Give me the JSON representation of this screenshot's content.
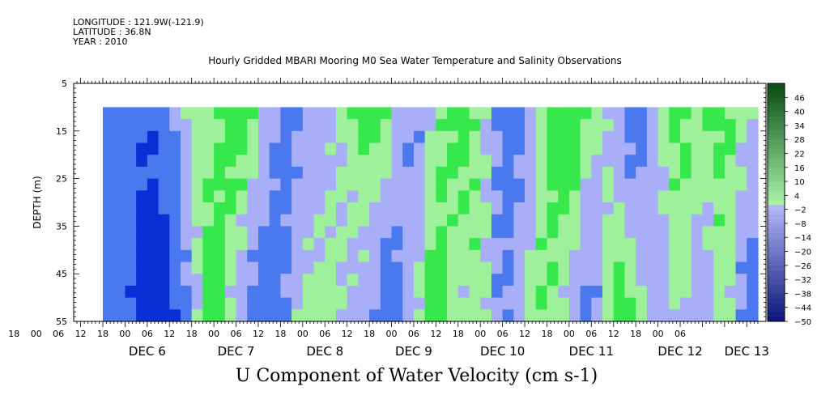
{
  "meta": {
    "longitude": "LONGITUDE : 121.9W(-121.9)",
    "latitude": "LATITUDE : 36.8N",
    "year": "YEAR : 2010"
  },
  "chart_data": {
    "type": "heatmap",
    "title": "Hourly Gridded MBARI Mooring M0 Sea Water Temperature and Salinity Observations",
    "xlabel": "U Component of Water Velocity (cm s-1)",
    "ylabel": "DEPTH (m)",
    "ylim": [
      5,
      55
    ],
    "y_inverted": true,
    "y_ticks": [
      5,
      15,
      25,
      35,
      45,
      55
    ],
    "data_depth_range": [
      10,
      55
    ],
    "x_hours_range": [
      0,
      177
    ],
    "x_hour_ticks": [
      "12",
      "18",
      "00",
      "06",
      "12",
      "18",
      "00",
      "06",
      "12",
      "18",
      "00",
      "06",
      "12",
      "18",
      "00",
      "06",
      "12",
      "18",
      "00",
      "06",
      "12",
      "18",
      "00",
      "06",
      "12",
      "18",
      "00",
      "06",
      "12",
      "18",
      "00",
      "06"
    ],
    "date_labels": [
      "DEC 6",
      "DEC 7",
      "DEC 8",
      "DEC 9",
      "DEC 10",
      "DEC 11",
      "DEC 12",
      "DEC 13"
    ],
    "date_label_positions_hours": [
      12,
      36,
      60,
      84,
      108,
      132,
      156,
      174
    ],
    "colorbar": {
      "labels": [
        "46",
        "40",
        "34",
        "28",
        "22",
        "16",
        "10",
        "4",
        "-2",
        "-8",
        "-14",
        "-20",
        "-26",
        "-32",
        "-38",
        "-44",
        "-50"
      ],
      "range": [
        -50,
        52
      ],
      "step": 6
    },
    "colors": {
      "strong_negative": "#0a2fd6",
      "negative": "#4a78ee",
      "weak_negative": "#a8aef8",
      "weak_positive": "#9ef09a",
      "positive": "#36e84c",
      "strong_positive": "#10cc30"
    },
    "series": [
      {
        "name": "u_velocity_profile_bands",
        "hours": [
          0,
          6,
          12,
          18,
          24,
          30,
          36,
          42,
          48,
          54,
          60,
          66,
          72,
          78,
          84,
          90,
          96,
          102,
          108,
          114,
          120,
          126,
          132,
          138,
          144,
          150,
          156,
          162,
          168,
          174
        ],
        "surface": [
          -28,
          -20,
          -32,
          -20,
          6,
          6,
          22,
          8,
          -20,
          -14,
          -6,
          4,
          20,
          6,
          -20,
          4,
          18,
          6,
          -20,
          -18,
          14,
          24,
          8,
          -6,
          -28,
          6,
          14,
          8,
          16,
          4
        ],
        "bottom": [
          -20,
          -26,
          -44,
          -40,
          -10,
          24,
          -8,
          -26,
          -20,
          4,
          8,
          -2,
          -12,
          -28,
          -2,
          22,
          -4,
          10,
          -20,
          4,
          10,
          -4,
          -28,
          20,
          12,
          -18,
          6,
          -14,
          8,
          -26
        ]
      }
    ]
  }
}
